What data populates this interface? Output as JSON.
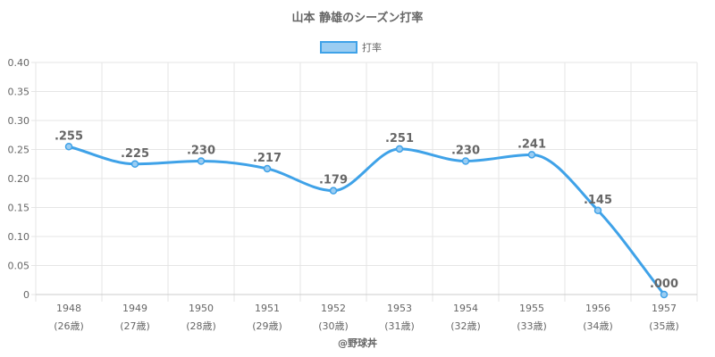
{
  "chart_data": {
    "type": "line",
    "title": "山本 静雄のシーズン打率",
    "categories": [
      "1948",
      "1949",
      "1950",
      "1951",
      "1952",
      "1953",
      "1954",
      "1955",
      "1956",
      "1957"
    ],
    "sub_categories": [
      "(26歳)",
      "(27歳)",
      "(28歳)",
      "(29歳)",
      "(30歳)",
      "(31歳)",
      "(32歳)",
      "(33歳)",
      "(34歳)",
      "(35歳)"
    ],
    "series": [
      {
        "name": "打率",
        "values": [
          0.255,
          0.225,
          0.23,
          0.217,
          0.179,
          0.251,
          0.23,
          0.241,
          0.145,
          0.0
        ],
        "labels": [
          ".255",
          ".225",
          ".230",
          ".217",
          ".179",
          ".251",
          ".230",
          ".241",
          ".145",
          ".000"
        ]
      }
    ],
    "ylim": [
      0,
      0.4
    ],
    "yticks": [
      "0",
      "0.05",
      "0.10",
      "0.15",
      "0.20",
      "0.25",
      "0.30",
      "0.35",
      "0.40"
    ],
    "grid": true,
    "legend_position": "top-center",
    "colors": {
      "line": "#3fa2e8",
      "legend_fill": "#9bcdf2"
    },
    "credit": "@野球丼"
  }
}
